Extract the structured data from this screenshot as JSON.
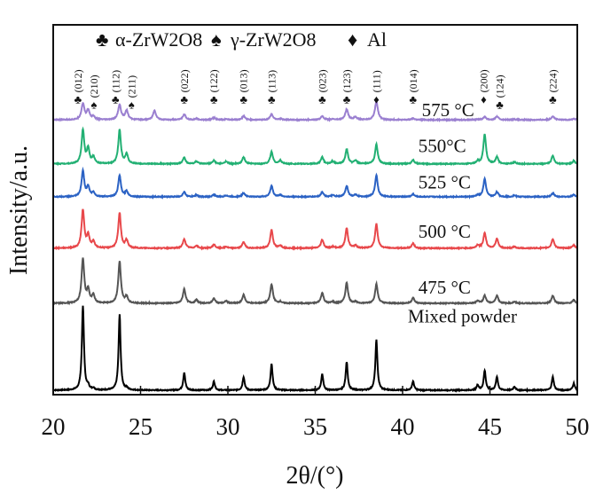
{
  "chart_data": {
    "type": "line",
    "xlabel": "2θ/(°)",
    "ylabel": "Intensity/a.u.",
    "xlim": [
      20,
      50
    ],
    "ylim": [
      0,
      100
    ],
    "xticks": [
      "20",
      "25",
      "30",
      "35",
      "40",
      "45",
      "50"
    ],
    "grid": false,
    "legend": {
      "placement": "top",
      "entries": [
        {
          "symbol": "♣",
          "label": "α-ZrW2O8"
        },
        {
          "symbol": "♠",
          "label": "γ-ZrW2O8"
        },
        {
          "symbol": "♦",
          "label": "Al"
        }
      ]
    },
    "peak_positions": [
      21.7,
      22.0,
      22.3,
      23.8,
      24.2,
      25.8,
      27.5,
      28.2,
      29.2,
      29.9,
      30.9,
      32.5,
      33.0,
      35.4,
      36.0,
      36.8,
      37.3,
      38.5,
      40.6,
      44.3,
      44.7,
      45.4,
      46.4,
      48.6,
      49.8
    ],
    "series": [
      {
        "name": "Mixed powder",
        "color": "#000000",
        "offset": 1.2,
        "width": 0.07,
        "intensities": [
          22.8,
          1,
          0.5,
          20.4,
          0.5,
          0,
          4.8,
          0,
          2.4,
          0,
          3.6,
          7.2,
          0,
          4.3,
          0,
          7.7,
          0,
          13.7,
          2.4,
          1.4,
          5.3,
          3.6,
          1,
          3.6,
          1.9
        ]
      },
      {
        "name": "475 °C",
        "color": "#555555",
        "offset": 24.7,
        "width": 0.09,
        "intensities": [
          12,
          3.4,
          2.1,
          11.3,
          1.7,
          0,
          3.9,
          0.9,
          1.3,
          0.6,
          2.3,
          5.2,
          0.4,
          2.8,
          0.4,
          5.6,
          0.4,
          5.2,
          1.5,
          0.7,
          2.1,
          2.1,
          0.4,
          2.1,
          0.9
        ]
      },
      {
        "name": "500 °C",
        "color": "#e8484b",
        "offset": 39.6,
        "width": 0.09,
        "intensities": [
          10.3,
          3.3,
          1.7,
          9.5,
          2.1,
          0,
          2.5,
          0.7,
          1,
          0.4,
          1.7,
          5,
          0.7,
          2.3,
          0.4,
          5.4,
          0.7,
          6.6,
          1.3,
          0.8,
          4.1,
          2.5,
          0.4,
          2.5,
          0.8
        ]
      },
      {
        "name": "525 °C",
        "color": "#2b62c4",
        "offset": 53.5,
        "width": 0.09,
        "intensities": [
          7,
          2.6,
          1.1,
          5.8,
          1.5,
          0,
          1.3,
          0.5,
          0.6,
          0.4,
          1.1,
          3,
          0.5,
          1.3,
          0.4,
          3,
          0.5,
          5.9,
          0.7,
          0.4,
          4.8,
          1.3,
          0.4,
          1,
          0.6
        ]
      },
      {
        "name": "550°C",
        "color": "#22b073",
        "offset": 62.4,
        "width": 0.09,
        "intensities": [
          9.1,
          4,
          1.8,
          9.2,
          2.6,
          0,
          1.8,
          0.7,
          0.9,
          0.7,
          1.8,
          3.3,
          0.9,
          1.8,
          0.7,
          4,
          0.9,
          5.3,
          1.1,
          0.7,
          8,
          1.8,
          0.5,
          2.2,
          0.8
        ]
      },
      {
        "name": "575 °C",
        "color": "#9a7fd0",
        "offset": 74.3,
        "width": 0.1,
        "intensities": [
          4.3,
          2.5,
          0.8,
          4,
          2.5,
          2.5,
          1.5,
          0.3,
          0.6,
          0.2,
          1,
          1.5,
          0.3,
          1,
          0.2,
          2.8,
          0.8,
          5,
          0.4,
          0.2,
          0.8,
          0.9,
          0.2,
          1,
          0.3
        ]
      }
    ],
    "annotations": [
      {
        "x": 21.7,
        "hkl": "(012)",
        "symbol": "♣"
      },
      {
        "x": 22.05,
        "hkl": "(210)",
        "symbol": "♠"
      },
      {
        "x": 23.8,
        "hkl": "(112)",
        "symbol": "♣"
      },
      {
        "x": 24.25,
        "hkl": "(211)",
        "symbol": "♠"
      },
      {
        "x": 27.5,
        "hkl": "(022)",
        "symbol": "♣"
      },
      {
        "x": 29.2,
        "hkl": "(122)",
        "symbol": "♣"
      },
      {
        "x": 30.9,
        "hkl": "(013)",
        "symbol": "♣"
      },
      {
        "x": 32.5,
        "hkl": "(113)",
        "symbol": "♣"
      },
      {
        "x": 35.4,
        "hkl": "(023)",
        "symbol": "♣"
      },
      {
        "x": 36.8,
        "hkl": "(123)",
        "symbol": "♣"
      },
      {
        "x": 38.5,
        "hkl": "(111)",
        "symbol": "♦"
      },
      {
        "x": 40.6,
        "hkl": "(014)",
        "symbol": "♣"
      },
      {
        "x": 44.8,
        "hkl": "(200)",
        "symbol": "♦"
      },
      {
        "x": 45.4,
        "hkl": "(124)",
        "symbol": "♣"
      },
      {
        "x": 48.6,
        "hkl": "(224)",
        "symbol": "♣"
      }
    ]
  }
}
